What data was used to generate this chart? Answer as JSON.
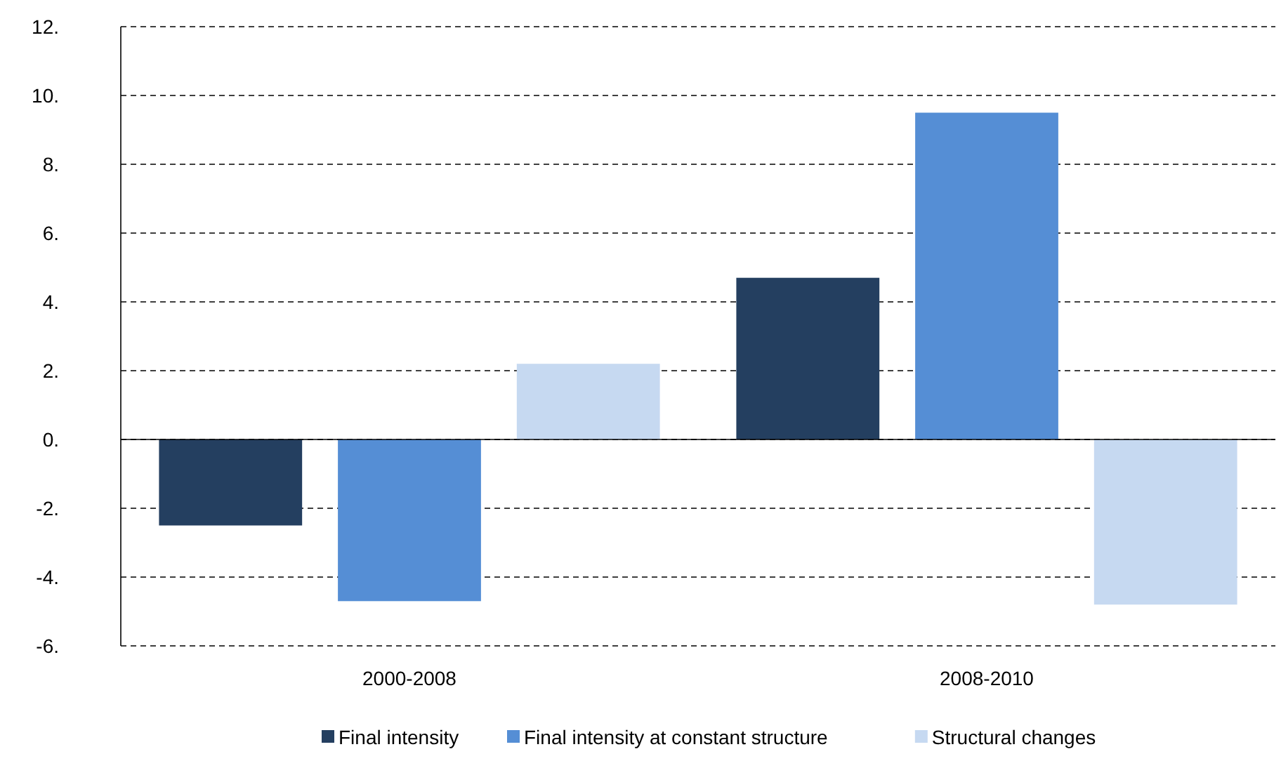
{
  "chart_data": {
    "type": "bar",
    "categories": [
      "2000-2008",
      "2008-2010"
    ],
    "series": [
      {
        "name": "Final intensity",
        "color": "#243f60",
        "values": [
          -2.5,
          4.7
        ]
      },
      {
        "name": "Final intensity at constant structure",
        "color": "#558ed5",
        "values": [
          -4.7,
          9.5
        ]
      },
      {
        "name": "Structural changes",
        "color": "#c6d9f1",
        "values": [
          2.2,
          -4.8
        ]
      }
    ],
    "ylim": [
      -6,
      12
    ],
    "yticks": [
      {
        "value": -6,
        "label": "-6."
      },
      {
        "value": -4,
        "label": "-4."
      },
      {
        "value": -2,
        "label": "-2."
      },
      {
        "value": 0,
        "label": "0."
      },
      {
        "value": 2,
        "label": "2."
      },
      {
        "value": 4,
        "label": "4."
      },
      {
        "value": 6,
        "label": "6."
      },
      {
        "value": 8,
        "label": "8."
      },
      {
        "value": 10,
        "label": "10."
      },
      {
        "value": 12,
        "label": "12."
      }
    ],
    "grid": "y",
    "legend": "bottom"
  }
}
